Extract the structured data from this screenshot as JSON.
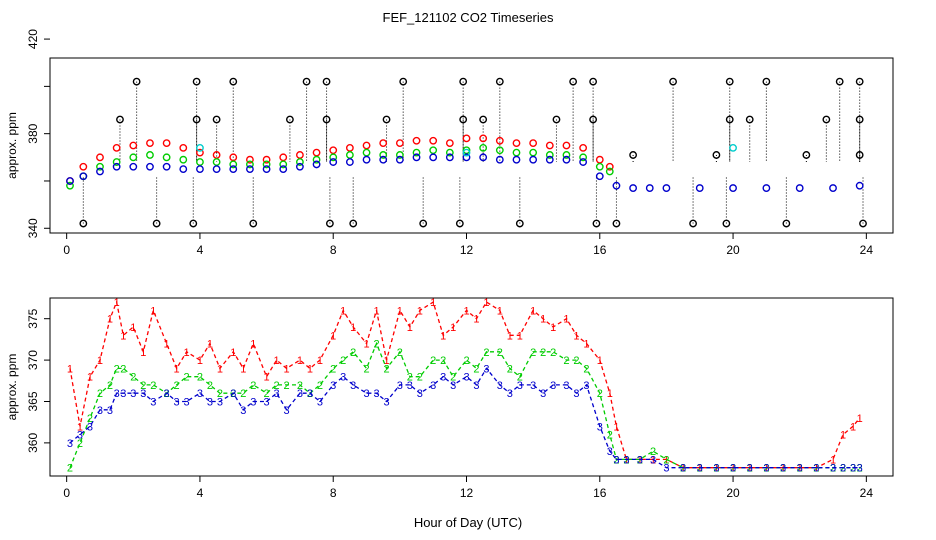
{
  "title": "FEF_121102  CO2 Timeseries",
  "xlabel": "Hour of Day (UTC)",
  "chart_data": [
    {
      "type": "scatter",
      "ylabel": "approx. ppm",
      "xlim": [
        -0.5,
        24.8
      ],
      "ylim": [
        338,
        412
      ],
      "xticks": [
        0,
        4,
        8,
        12,
        16,
        20,
        24
      ],
      "yticks": [
        340,
        380,
        420
      ],
      "yticks_minor": [
        360,
        400
      ],
      "series": [
        {
          "name": "series-red",
          "color": "#ff0000",
          "x": [
            0.1,
            0.5,
            1.0,
            1.5,
            2.0,
            2.5,
            3.0,
            3.5,
            4.0,
            4.5,
            5.0,
            5.5,
            6.0,
            6.5,
            7.0,
            7.5,
            8.0,
            8.5,
            9.0,
            9.5,
            10.0,
            10.5,
            11.0,
            11.5,
            12.0,
            12.5,
            13.0,
            13.5,
            14.0,
            14.5,
            15.0,
            15.5,
            16.0,
            16.3
          ],
          "y": [
            360,
            366,
            370,
            374,
            375,
            376,
            376,
            374,
            372,
            371,
            370,
            369,
            369,
            370,
            371,
            372,
            373,
            374,
            375,
            376,
            376,
            377,
            377,
            376,
            378,
            378,
            377,
            376,
            376,
            375,
            375,
            374,
            369,
            366
          ]
        },
        {
          "name": "series-green",
          "color": "#00cc00",
          "x": [
            0.1,
            0.5,
            1.0,
            1.5,
            2.0,
            2.5,
            3.0,
            3.5,
            4.0,
            4.5,
            5.0,
            5.5,
            6.0,
            6.5,
            7.0,
            7.5,
            8.0,
            8.5,
            9.0,
            9.5,
            10.0,
            10.5,
            11.0,
            11.5,
            12.0,
            12.5,
            13.0,
            13.5,
            14.0,
            14.5,
            15.0,
            15.5,
            16.0,
            16.3
          ],
          "y": [
            358,
            362,
            366,
            368,
            370,
            371,
            370,
            369,
            368,
            368,
            367,
            367,
            367,
            367,
            368,
            369,
            370,
            371,
            372,
            371,
            371,
            372,
            373,
            372,
            373,
            374,
            373,
            372,
            372,
            371,
            371,
            370,
            366,
            364
          ]
        },
        {
          "name": "series-blue",
          "color": "#0000cc",
          "x": [
            0.1,
            0.5,
            1.0,
            1.5,
            2.0,
            2.5,
            3.0,
            3.5,
            4.0,
            4.5,
            5.0,
            5.5,
            6.0,
            6.5,
            7.0,
            7.5,
            8.0,
            8.5,
            9.0,
            9.5,
            10.0,
            10.5,
            11.0,
            11.5,
            12.0,
            12.5,
            13.0,
            13.5,
            14.0,
            14.5,
            15.0,
            15.5,
            16.0,
            16.5,
            17.0,
            17.5,
            18.0,
            19.0,
            20.0,
            21.0,
            22.0,
            23.0,
            23.8
          ],
          "y": [
            360,
            362,
            364,
            366,
            366,
            366,
            366,
            365,
            365,
            365,
            365,
            365,
            365,
            365,
            366,
            367,
            368,
            368,
            369,
            369,
            369,
            370,
            370,
            370,
            370,
            370,
            369,
            369,
            369,
            369,
            369,
            368,
            362,
            358,
            357,
            357,
            357,
            357,
            357,
            357,
            357,
            357,
            358
          ]
        },
        {
          "name": "series-cyan",
          "color": "#00cccc",
          "x": [
            4.0,
            12.0,
            20.0
          ],
          "y": [
            374,
            372,
            374
          ]
        },
        {
          "name": "series-black-high",
          "color": "#000000",
          "x": [
            2.1,
            3.9,
            5.0,
            7.2,
            7.8,
            10.1,
            11.9,
            13.0,
            15.2,
            15.8,
            18.2,
            19.9,
            21.0,
            23.2,
            23.8
          ],
          "y": [
            402,
            402,
            402,
            402,
            402,
            402,
            402,
            402,
            402,
            402,
            402,
            402,
            402,
            402,
            402
          ]
        },
        {
          "name": "series-black-mid",
          "color": "#000000",
          "x": [
            1.6,
            3.9,
            4.5,
            6.7,
            7.8,
            9.6,
            11.9,
            12.5,
            14.7,
            15.8,
            19.9,
            20.5,
            22.8,
            23.8
          ],
          "y": [
            386,
            386,
            386,
            386,
            386,
            386,
            386,
            386,
            386,
            386,
            386,
            386,
            386,
            386
          ]
        },
        {
          "name": "series-black-low",
          "color": "#000000",
          "x": [
            17.0,
            19.5,
            22.2,
            23.8
          ],
          "y": [
            371,
            371,
            371,
            371
          ]
        },
        {
          "name": "series-black-bottom",
          "color": "#000000",
          "x": [
            0.5,
            2.7,
            3.8,
            5.6,
            7.9,
            8.6,
            10.7,
            11.8,
            13.6,
            15.9,
            16.5,
            18.8,
            19.8,
            21.6,
            23.9
          ],
          "y": [
            342,
            342,
            342,
            342,
            342,
            342,
            342,
            342,
            342,
            342,
            342,
            342,
            342,
            342,
            342
          ]
        }
      ]
    },
    {
      "type": "line",
      "ylabel": "approx. ppm",
      "xlim": [
        -0.5,
        24.8
      ],
      "ylim": [
        356,
        377.5
      ],
      "xticks": [
        0,
        4,
        8,
        12,
        16,
        20,
        24
      ],
      "yticks": [
        360,
        365,
        370,
        375
      ],
      "series": [
        {
          "name": "1",
          "color": "#ff0000",
          "x": [
            0.1,
            0.4,
            0.7,
            1.0,
            1.3,
            1.5,
            1.7,
            2.0,
            2.3,
            2.6,
            3.0,
            3.3,
            3.6,
            4.0,
            4.3,
            4.6,
            5.0,
            5.3,
            5.6,
            6.0,
            6.3,
            6.6,
            7.0,
            7.3,
            7.6,
            8.0,
            8.3,
            8.6,
            9.0,
            9.3,
            9.6,
            10.0,
            10.3,
            10.6,
            11.0,
            11.3,
            11.6,
            12.0,
            12.3,
            12.6,
            13.0,
            13.3,
            13.6,
            14.0,
            14.3,
            14.6,
            15.0,
            15.3,
            15.6,
            16.0,
            16.3,
            16.5,
            16.8,
            17.2,
            17.6,
            18.0,
            18.5,
            19.0,
            19.5,
            20.0,
            20.5,
            21.0,
            21.5,
            22.0,
            22.5,
            23.0,
            23.3,
            23.6,
            23.8
          ],
          "y": [
            369,
            362,
            368,
            370,
            375,
            377,
            373,
            374,
            371,
            376,
            372,
            369,
            371,
            370,
            372,
            369,
            371,
            369,
            372,
            368,
            370,
            369,
            370,
            369,
            370,
            373,
            376,
            374,
            372,
            376,
            370,
            376,
            374,
            376,
            377,
            373,
            374,
            376,
            375,
            377,
            376,
            373,
            373,
            376,
            375,
            374,
            375,
            373,
            372,
            370,
            366,
            362,
            358,
            358,
            358,
            358,
            357,
            357,
            357,
            357,
            357,
            357,
            357,
            357,
            357,
            358,
            361,
            362,
            363
          ]
        },
        {
          "name": "2",
          "color": "#00cc00",
          "x": [
            0.1,
            0.4,
            0.7,
            1.0,
            1.3,
            1.5,
            1.7,
            2.0,
            2.3,
            2.6,
            3.0,
            3.3,
            3.6,
            4.0,
            4.3,
            4.6,
            5.0,
            5.3,
            5.6,
            6.0,
            6.3,
            6.6,
            7.0,
            7.3,
            7.6,
            8.0,
            8.3,
            8.6,
            9.0,
            9.3,
            9.6,
            10.0,
            10.3,
            10.6,
            11.0,
            11.3,
            11.6,
            12.0,
            12.3,
            12.6,
            13.0,
            13.3,
            13.6,
            14.0,
            14.3,
            14.6,
            15.0,
            15.3,
            15.6,
            16.0,
            16.3,
            16.5,
            16.8,
            17.2,
            17.6,
            18.0,
            18.5,
            19.0,
            19.5,
            20.0,
            20.5,
            21.0,
            21.5,
            22.0,
            22.5,
            23.0,
            23.3,
            23.6,
            23.8
          ],
          "y": [
            357,
            360,
            363,
            366,
            367,
            369,
            369,
            368,
            367,
            367,
            366,
            367,
            368,
            368,
            367,
            366,
            366,
            366,
            367,
            366,
            367,
            367,
            367,
            366,
            367,
            369,
            370,
            371,
            369,
            372,
            369,
            371,
            368,
            368,
            370,
            370,
            368,
            370,
            369,
            371,
            371,
            369,
            368,
            371,
            371,
            371,
            370,
            370,
            369,
            366,
            361,
            358,
            358,
            358,
            359,
            358,
            357,
            357,
            357,
            357,
            357,
            357,
            357,
            357,
            357,
            357,
            357,
            357,
            357
          ]
        },
        {
          "name": "3",
          "color": "#0000cc",
          "x": [
            0.1,
            0.4,
            0.7,
            1.0,
            1.3,
            1.5,
            1.7,
            2.0,
            2.3,
            2.6,
            3.0,
            3.3,
            3.6,
            4.0,
            4.3,
            4.6,
            5.0,
            5.3,
            5.6,
            6.0,
            6.3,
            6.6,
            7.0,
            7.3,
            7.6,
            8.0,
            8.3,
            8.6,
            9.0,
            9.3,
            9.6,
            10.0,
            10.3,
            10.6,
            11.0,
            11.3,
            11.6,
            12.0,
            12.3,
            12.6,
            13.0,
            13.3,
            13.6,
            14.0,
            14.3,
            14.6,
            15.0,
            15.3,
            15.6,
            16.0,
            16.3,
            16.5,
            16.8,
            17.2,
            17.6,
            18.0,
            18.5,
            19.0,
            19.5,
            20.0,
            20.5,
            21.0,
            21.5,
            22.0,
            22.5,
            23.0,
            23.3,
            23.6,
            23.8
          ],
          "y": [
            360,
            361,
            362,
            364,
            364,
            366,
            366,
            366,
            366,
            365,
            366,
            365,
            365,
            366,
            365,
            365,
            366,
            364,
            365,
            365,
            366,
            364,
            366,
            366,
            365,
            367,
            368,
            367,
            366,
            366,
            365,
            367,
            367,
            366,
            367,
            368,
            367,
            368,
            367,
            369,
            367,
            366,
            367,
            367,
            366,
            367,
            367,
            366,
            367,
            362,
            359,
            358,
            358,
            358,
            358,
            357,
            357,
            357,
            357,
            357,
            357,
            357,
            357,
            357,
            357,
            357,
            357,
            357,
            357
          ]
        }
      ]
    }
  ]
}
